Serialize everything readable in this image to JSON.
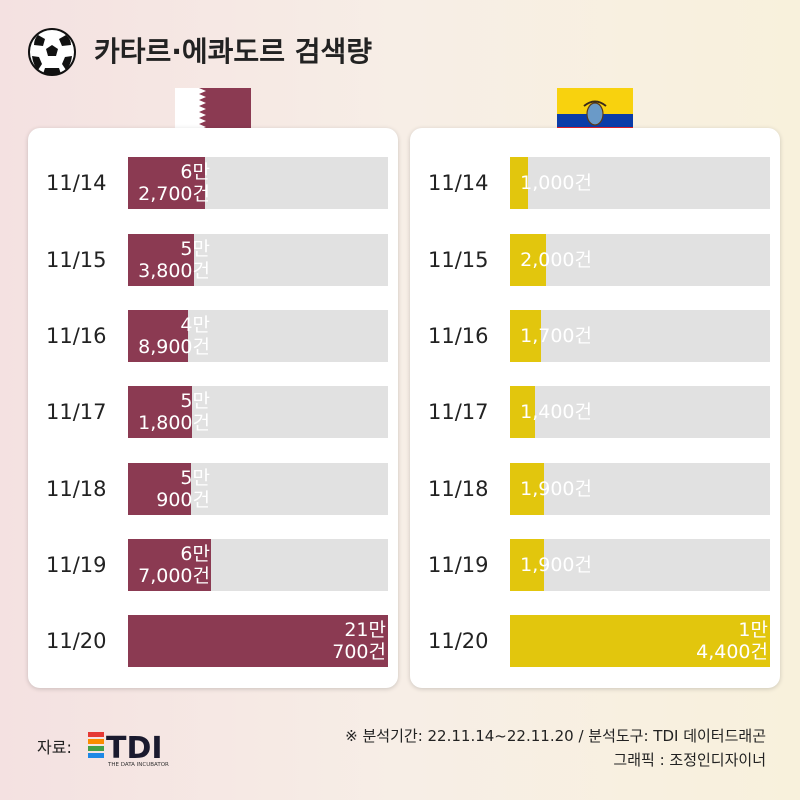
{
  "title": "카타르·에콰도르 검색량",
  "colors": {
    "qatar": "#8b3a52",
    "ecuador": "#e2c60d",
    "track": "#e1e1e1"
  },
  "icons": {
    "title": "soccer-ball-icon",
    "qatar_flag": "qatar-flag-icon",
    "ecuador_flag": "ecuador-flag-icon"
  },
  "chart_data": [
    {
      "type": "bar",
      "orientation": "horizontal",
      "flag": "Qatar",
      "categories": [
        "11/14",
        "11/15",
        "11/16",
        "11/17",
        "11/18",
        "11/19",
        "11/20"
      ],
      "values": [
        62700,
        53800,
        48900,
        51800,
        50900,
        67000,
        210700
      ],
      "labels": [
        [
          "6만",
          "2,700건"
        ],
        [
          "5만",
          "3,800건"
        ],
        [
          "4만",
          "8,900건"
        ],
        [
          "5만",
          "1,800건"
        ],
        [
          "5만",
          "900건"
        ],
        [
          "6만",
          "7,000건"
        ],
        [
          "21만",
          "700건"
        ]
      ],
      "xlim": [
        0,
        210700
      ]
    },
    {
      "type": "bar",
      "orientation": "horizontal",
      "flag": "Ecuador",
      "categories": [
        "11/14",
        "11/15",
        "11/16",
        "11/17",
        "11/18",
        "11/19",
        "11/20"
      ],
      "values": [
        1000,
        2000,
        1700,
        1400,
        1900,
        1900,
        14400
      ],
      "labels": [
        [
          "1,000건"
        ],
        [
          "2,000건"
        ],
        [
          "1,700건"
        ],
        [
          "1,400건"
        ],
        [
          "1,900건"
        ],
        [
          "1,900건"
        ],
        [
          "1만",
          "4,400건"
        ]
      ],
      "xlim": [
        0,
        14400
      ]
    }
  ],
  "footer": {
    "source_label": "자료:",
    "logo_text": "TDI",
    "logo_subtext": "THE DATA INCUBATOR",
    "period": "※ 분석기간: 22.11.14~22.11.20  / 분석도구: TDI 데이터드래곤",
    "graphic": "그래픽 : 조정인디자이너"
  }
}
